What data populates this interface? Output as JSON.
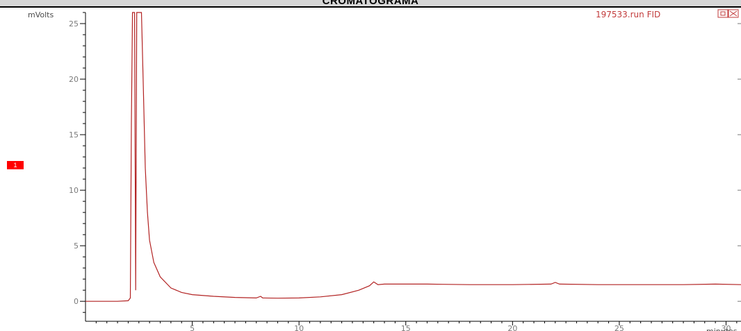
{
  "title": "CROMATOGRAMA",
  "peak_marker": "1",
  "chart_data": {
    "type": "line",
    "title": "CROMATOGRAMA",
    "series_label": "197533.run FID",
    "ylabel": "mVolts",
    "xlabel": "minutes",
    "xlim": [
      0,
      30.7
    ],
    "ylim": [
      -1.8,
      26
    ],
    "xticks": [
      5,
      10,
      15,
      20,
      25,
      30
    ],
    "yticks": [
      0,
      5,
      10,
      15,
      20,
      25
    ],
    "grid": false,
    "line_color": "#b22222",
    "series": [
      {
        "name": "197533.run FID",
        "points": [
          [
            0.0,
            0.0
          ],
          [
            1.5,
            0.0
          ],
          [
            2.0,
            0.05
          ],
          [
            2.1,
            0.3
          ],
          [
            2.15,
            16.0
          ],
          [
            2.2,
            26.0
          ],
          [
            2.3,
            26.0
          ],
          [
            2.35,
            1.0
          ],
          [
            2.4,
            26.0
          ],
          [
            2.55,
            26.0
          ],
          [
            2.62,
            26.0
          ],
          [
            2.7,
            20.0
          ],
          [
            2.8,
            12.0
          ],
          [
            2.9,
            8.0
          ],
          [
            3.0,
            5.5
          ],
          [
            3.2,
            3.5
          ],
          [
            3.5,
            2.2
          ],
          [
            4.0,
            1.2
          ],
          [
            4.5,
            0.8
          ],
          [
            5.0,
            0.6
          ],
          [
            6.0,
            0.45
          ],
          [
            7.0,
            0.35
          ],
          [
            8.0,
            0.3
          ],
          [
            8.2,
            0.45
          ],
          [
            8.3,
            0.3
          ],
          [
            9.0,
            0.28
          ],
          [
            10.0,
            0.3
          ],
          [
            11.0,
            0.4
          ],
          [
            12.0,
            0.6
          ],
          [
            12.8,
            1.0
          ],
          [
            13.3,
            1.4
          ],
          [
            13.5,
            1.75
          ],
          [
            13.7,
            1.5
          ],
          [
            14.0,
            1.55
          ],
          [
            16.0,
            1.55
          ],
          [
            18.0,
            1.5
          ],
          [
            20.0,
            1.5
          ],
          [
            21.8,
            1.55
          ],
          [
            22.0,
            1.7
          ],
          [
            22.2,
            1.55
          ],
          [
            24.0,
            1.5
          ],
          [
            26.0,
            1.5
          ],
          [
            28.0,
            1.5
          ],
          [
            29.5,
            1.55
          ],
          [
            30.7,
            1.5
          ]
        ]
      }
    ]
  }
}
